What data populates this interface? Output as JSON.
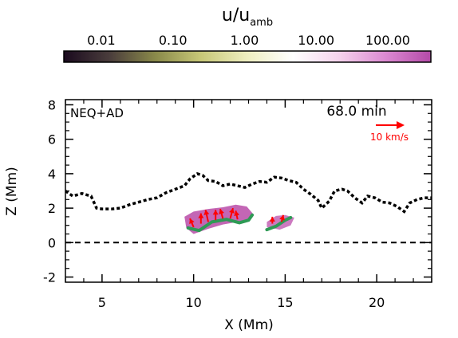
{
  "colorbar": {
    "title_main": "u/u",
    "title_sub": "amb",
    "tick_labels": [
      "0.01",
      "0.10",
      "1.00",
      "10.00",
      "100.00"
    ],
    "tick_values": [
      0.01,
      0.1,
      1,
      10,
      100
    ],
    "range": [
      0.003,
      400
    ],
    "scale": "log",
    "stops": [
      "#1a0a1e",
      "#4a3d3c",
      "#8a8a4a",
      "#c8c878",
      "#eeeec0",
      "#ffffff",
      "#f4d2ec",
      "#dc8ad2",
      "#b44aa8"
    ]
  },
  "panel": {
    "label_left": "NEQ+AD",
    "time": "68.0 min",
    "velocity_label": "10 km/s"
  },
  "chart_data": {
    "type": "line",
    "xlabel": "X (Mm)",
    "ylabel": "Z (Mm)",
    "xlim": [
      3,
      23
    ],
    "ylim": [
      -2.3,
      8.3
    ],
    "xticks": [
      5,
      10,
      15,
      20
    ],
    "yticks": [
      -2,
      0,
      2,
      4,
      6,
      8
    ],
    "grid": false,
    "series": [
      {
        "style": "dotted",
        "x": [
          3.0,
          3.4,
          3.9,
          4.4,
          4.7,
          5.0,
          5.5,
          6.0,
          6.5,
          7.0,
          7.5,
          8.0,
          8.5,
          9.0,
          9.5,
          9.8,
          10.2,
          10.5,
          10.8,
          11.2,
          11.6,
          12.0,
          12.4,
          12.8,
          13.2,
          13.6,
          14.0,
          14.4,
          14.8,
          15.2,
          15.6,
          16.0,
          16.4,
          16.8,
          17.0,
          17.4,
          17.7,
          18.1,
          18.4,
          18.8,
          19.2,
          19.5,
          19.9,
          20.3,
          20.7,
          21.1,
          21.5,
          21.8,
          22.2,
          22.6,
          23.0
        ],
        "y": [
          3.0,
          2.7,
          2.85,
          2.7,
          2.0,
          1.95,
          1.95,
          2.0,
          2.2,
          2.35,
          2.5,
          2.6,
          2.9,
          3.1,
          3.3,
          3.7,
          4.0,
          3.9,
          3.6,
          3.55,
          3.3,
          3.4,
          3.3,
          3.2,
          3.4,
          3.55,
          3.5,
          3.8,
          3.75,
          3.6,
          3.5,
          3.1,
          2.8,
          2.45,
          2.0,
          2.4,
          3.0,
          3.1,
          3.0,
          2.6,
          2.3,
          2.7,
          2.6,
          2.35,
          2.3,
          2.1,
          1.8,
          2.3,
          2.5,
          2.6,
          2.6
        ]
      },
      {
        "style": "dashed",
        "x": [
          3,
          23
        ],
        "y": [
          0,
          0
        ]
      }
    ],
    "fills": [
      {
        "color": "#bc55ad",
        "x": [
          9.5,
          10.0,
          10.8,
          11.6,
          12.3,
          12.9,
          13.3,
          13.0,
          12.4,
          11.6,
          10.8,
          10.0,
          9.6
        ],
        "y": [
          1.5,
          1.8,
          1.95,
          2.05,
          2.2,
          2.1,
          1.6,
          1.3,
          1.2,
          1.05,
          0.8,
          0.5,
          0.85
        ]
      },
      {
        "color": "#c66cb9",
        "x": [
          14.0,
          14.5,
          15.0,
          15.5,
          15.3,
          14.7,
          14.0
        ],
        "y": [
          1.2,
          1.55,
          1.6,
          1.45,
          1.0,
          0.75,
          0.9
        ]
      }
    ],
    "contours": [
      {
        "color": "#2e9a55",
        "x": [
          9.7,
          10.3,
          11.0,
          11.8,
          12.5,
          13.0,
          13.2
        ],
        "y": [
          0.85,
          0.7,
          1.2,
          1.35,
          1.15,
          1.3,
          1.6
        ]
      },
      {
        "color": "#2e9a55",
        "x": [
          14.0,
          14.5,
          15.0,
          15.3
        ],
        "y": [
          0.75,
          0.95,
          1.3,
          1.45
        ]
      }
    ],
    "vectors": [
      {
        "x": 10.0,
        "y": 0.9,
        "dx": -0.2,
        "dy": 0.5
      },
      {
        "x": 10.4,
        "y": 1.1,
        "dx": 0.0,
        "dy": 0.6
      },
      {
        "x": 10.8,
        "y": 1.2,
        "dx": -0.15,
        "dy": 0.7
      },
      {
        "x": 11.2,
        "y": 1.3,
        "dx": 0.0,
        "dy": 0.6
      },
      {
        "x": 11.6,
        "y": 1.4,
        "dx": -0.15,
        "dy": 0.55
      },
      {
        "x": 12.0,
        "y": 1.4,
        "dx": 0.15,
        "dy": 0.6
      },
      {
        "x": 12.4,
        "y": 1.35,
        "dx": -0.1,
        "dy": 0.5
      },
      {
        "x": 14.3,
        "y": 1.1,
        "dx": 0.0,
        "dy": 0.4
      },
      {
        "x": 14.8,
        "y": 1.2,
        "dx": 0.1,
        "dy": 0.4
      }
    ],
    "colors": {
      "line": "#000000",
      "vector": "#ff0000",
      "contour": "#2e9a55"
    }
  }
}
